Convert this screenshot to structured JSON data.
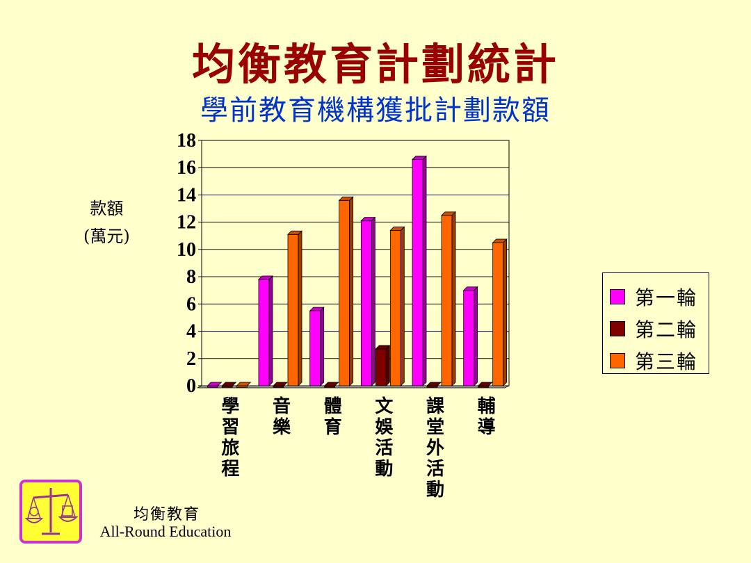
{
  "slide": {
    "title": "均衡教育計劃統計",
    "subtitle": "學前教育機構獲批計劃款額"
  },
  "chart_data": {
    "type": "bar",
    "title": "學前教育機構獲批計劃款額",
    "ylabel_line1": "款額",
    "ylabel_line2": "(萬元)",
    "ylim": [
      0,
      18
    ],
    "yticks": [
      0,
      2,
      4,
      6,
      8,
      10,
      12,
      14,
      16,
      18
    ],
    "categories": [
      "學習旅程",
      "音樂",
      "體育",
      "文娛活動",
      "課堂外活動",
      "輔導"
    ],
    "series": [
      {
        "name": "第一輪",
        "color": "#FF00FF",
        "values": [
          0,
          7.8,
          5.5,
          12.1,
          16.6,
          7.0
        ]
      },
      {
        "name": "第二輪",
        "color": "#800000",
        "values": [
          0,
          0,
          0,
          2.7,
          0,
          0
        ]
      },
      {
        "name": "第三輪",
        "color": "#FF6600",
        "values": [
          0,
          11.1,
          13.6,
          11.4,
          12.5,
          10.5
        ]
      }
    ],
    "grid": true,
    "legend_position": "right"
  },
  "footer": {
    "org_cn": "均衡教育",
    "org_en": "All-Round Education"
  },
  "logo": {
    "icon": "balance-scale-icon",
    "border_color": "#CC33CC",
    "fill_color": "#FFFF33"
  }
}
